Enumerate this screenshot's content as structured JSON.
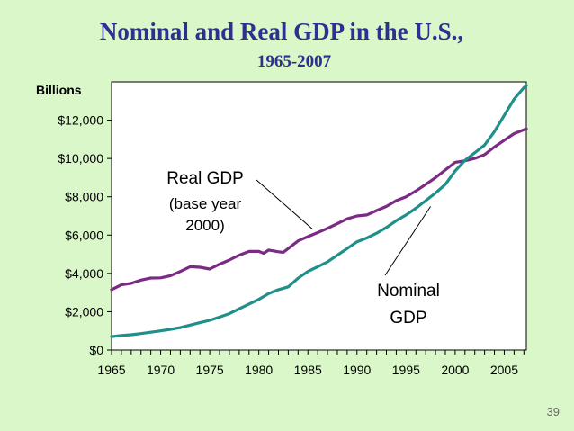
{
  "slide": {
    "title": "Nominal and Real GDP in the U.S.,",
    "subtitle": "1965-2007",
    "page_number": "39"
  },
  "colors": {
    "background": "#d9f7c9",
    "plot_background": "#ffffff",
    "title": "#2f2f8f",
    "real_gdp": "#7b2a86",
    "nominal_gdp": "#1f8f8a"
  },
  "chart_data": {
    "type": "line",
    "title": "Nominal and Real GDP in the U.S., 1965-2007",
    "ylabel": "Billions",
    "xlabel": "",
    "xlim": [
      1965,
      2007.25
    ],
    "ylim": [
      0,
      14000
    ],
    "y_ticks": [
      0,
      2000,
      4000,
      6000,
      8000,
      10000,
      12000
    ],
    "y_tick_labels": [
      "$0",
      "$2,000",
      "$4,000",
      "$6,000",
      "$8,000",
      "$10,000",
      "$12,000"
    ],
    "x_ticks": [
      1965,
      1970,
      1975,
      1980,
      1985,
      1990,
      1995,
      2000,
      2005
    ],
    "x_tick_labels": [
      "1965",
      "1970",
      "1975",
      "1980",
      "1985",
      "1990",
      "1995",
      "2000",
      "2005"
    ],
    "grid": false,
    "annotations": [
      {
        "name": "real-gdp-annotation",
        "lines": [
          "Real GDP",
          "(base year",
          "2000)"
        ],
        "points_to": [
          1985.5,
          6300
        ]
      },
      {
        "name": "nominal-gdp-annotation",
        "lines": [
          "Nominal",
          "GDP"
        ],
        "points_to": [
          1997.5,
          7500
        ]
      }
    ],
    "series": [
      {
        "name": "Real GDP",
        "x": [
          1965,
          1966,
          1967,
          1968,
          1969,
          1970,
          1971,
          1972,
          1973,
          1974,
          1975,
          1976,
          1977,
          1978,
          1979,
          1980,
          1980.5,
          1981,
          1982,
          1982.5,
          1983,
          1984,
          1985,
          1986,
          1987,
          1988,
          1989,
          1990,
          1991,
          1992,
          1993,
          1994,
          1995,
          1996,
          1997,
          1998,
          1999,
          2000,
          2001,
          2002,
          2003,
          2004,
          2005,
          2006,
          2007,
          2007.25
        ],
        "values": [
          3150,
          3400,
          3480,
          3650,
          3760,
          3770,
          3880,
          4100,
          4350,
          4320,
          4230,
          4480,
          4700,
          4950,
          5150,
          5150,
          5050,
          5220,
          5130,
          5100,
          5300,
          5700,
          5920,
          6130,
          6350,
          6600,
          6850,
          7000,
          7050,
          7280,
          7500,
          7800,
          8000,
          8300,
          8650,
          9000,
          9400,
          9800,
          9880,
          10000,
          10200,
          10600,
          10950,
          11300,
          11500,
          11550
        ]
      },
      {
        "name": "Nominal GDP",
        "x": [
          1965,
          1966,
          1967,
          1968,
          1969,
          1970,
          1971,
          1972,
          1973,
          1974,
          1975,
          1976,
          1977,
          1978,
          1979,
          1980,
          1981,
          1982,
          1983,
          1984,
          1985,
          1986,
          1987,
          1988,
          1989,
          1990,
          1991,
          1992,
          1993,
          1994,
          1995,
          1996,
          1997,
          1998,
          1999,
          2000,
          2001,
          2002,
          2003,
          2004,
          2005,
          2006,
          2007,
          2007.25
        ],
        "values": [
          700,
          760,
          800,
          860,
          930,
          1000,
          1080,
          1170,
          1300,
          1430,
          1550,
          1720,
          1900,
          2150,
          2400,
          2650,
          2950,
          3150,
          3300,
          3750,
          4100,
          4350,
          4600,
          4950,
          5300,
          5650,
          5850,
          6100,
          6400,
          6750,
          7050,
          7400,
          7800,
          8200,
          8650,
          9350,
          9900,
          10300,
          10700,
          11400,
          12250,
          13100,
          13700,
          13800
        ]
      }
    ]
  }
}
